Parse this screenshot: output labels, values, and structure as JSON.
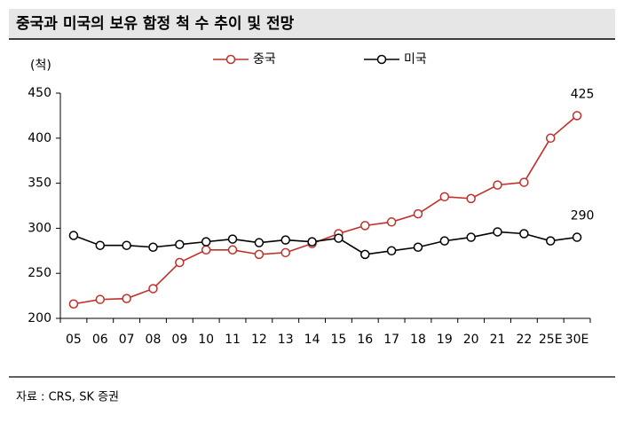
{
  "header": {
    "title": "중국과 미국의 보유 함정 척 수 추이 및 전망"
  },
  "chart_data": {
    "type": "line",
    "y_label": "(척)",
    "categories": [
      "05",
      "06",
      "07",
      "08",
      "09",
      "10",
      "11",
      "12",
      "13",
      "14",
      "15",
      "16",
      "17",
      "18",
      "19",
      "20",
      "21",
      "22",
      "25E",
      "30E"
    ],
    "series": [
      {
        "name": "중국",
        "color": "#c0302a",
        "values": [
          216,
          221,
          222,
          233,
          262,
          276,
          276,
          271,
          273,
          283,
          294,
          303,
          307,
          316,
          335,
          333,
          348,
          351,
          400,
          425
        ]
      },
      {
        "name": "미국",
        "color": "#000000",
        "values": [
          292,
          281,
          281,
          279,
          282,
          285,
          288,
          284,
          287,
          285,
          289,
          271,
          275,
          279,
          286,
          290,
          296,
          294,
          286,
          290
        ]
      }
    ],
    "ylim": [
      200,
      450
    ],
    "yticks": [
      200,
      250,
      300,
      350,
      400,
      450
    ],
    "grid": false,
    "legend": "top"
  },
  "footer": {
    "source": "자료 : CRS, SK 증권"
  }
}
